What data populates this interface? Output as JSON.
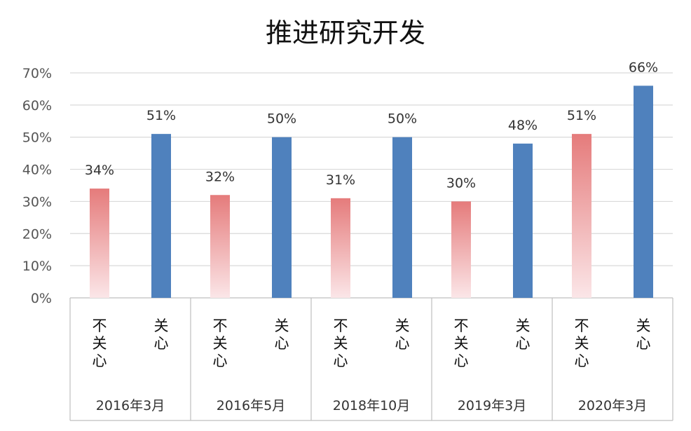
{
  "chart_data": {
    "type": "bar",
    "title": "推进研究开发",
    "xlabel": "",
    "ylabel": "",
    "ylim": [
      0,
      70
    ],
    "yticks": [
      "0%",
      "10%",
      "20%",
      "30%",
      "40%",
      "50%",
      "60%",
      "70%"
    ],
    "grid": true,
    "legend": "none",
    "categories": [
      "2016年3月",
      "2016年5月",
      "2018年10月",
      "2019年3月",
      "2020年3月"
    ],
    "series": [
      {
        "name": "不关心",
        "color": "#e57373",
        "values": [
          34,
          32,
          31,
          30,
          51
        ],
        "labels": [
          "34%",
          "32%",
          "31%",
          "30%",
          "51%"
        ]
      },
      {
        "name": "关心",
        "color": "#4f81bd",
        "values": [
          51,
          50,
          50,
          48,
          66
        ],
        "labels": [
          "51%",
          "50%",
          "50%",
          "48%",
          "66%"
        ]
      }
    ]
  }
}
